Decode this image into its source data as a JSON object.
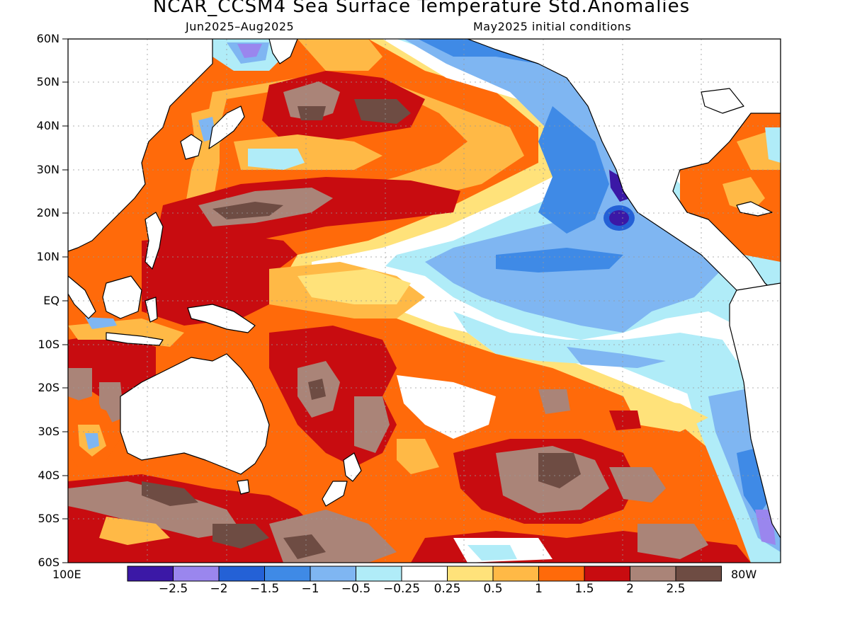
{
  "title": "NCAR_CCSM4 Sea Surface Temperature Std.Anomalies",
  "subtitle_left": "Jun2025–Aug2025",
  "subtitle_right": "May2025 initial conditions",
  "lat_ticks": [
    "60N",
    "50N",
    "40N",
    "30N",
    "20N",
    "10N",
    "EQ",
    "10S",
    "20S",
    "30S",
    "40S",
    "50S",
    "60S"
  ],
  "lon_left": "100E",
  "lon_right": "80W",
  "colorbar": {
    "colors": [
      "#3b18a6",
      "#9a86ee",
      "#2461d6",
      "#3f8ae6",
      "#7fb6f2",
      "#b0ecf8",
      "#ffffff",
      "#ffe27a",
      "#ffb946",
      "#ff6a0a",
      "#c80c10",
      "#aa8478",
      "#6e4c43"
    ],
    "labels": [
      "−2.5",
      "−2",
      "−1.5",
      "−1",
      "−0.5",
      "−0.25",
      "0.25",
      "0.5",
      "1",
      "1.5",
      "2",
      "2.5"
    ]
  },
  "palette": {
    "land": "#ffffff",
    "coast": "#000000",
    "grid": "#999999"
  }
}
